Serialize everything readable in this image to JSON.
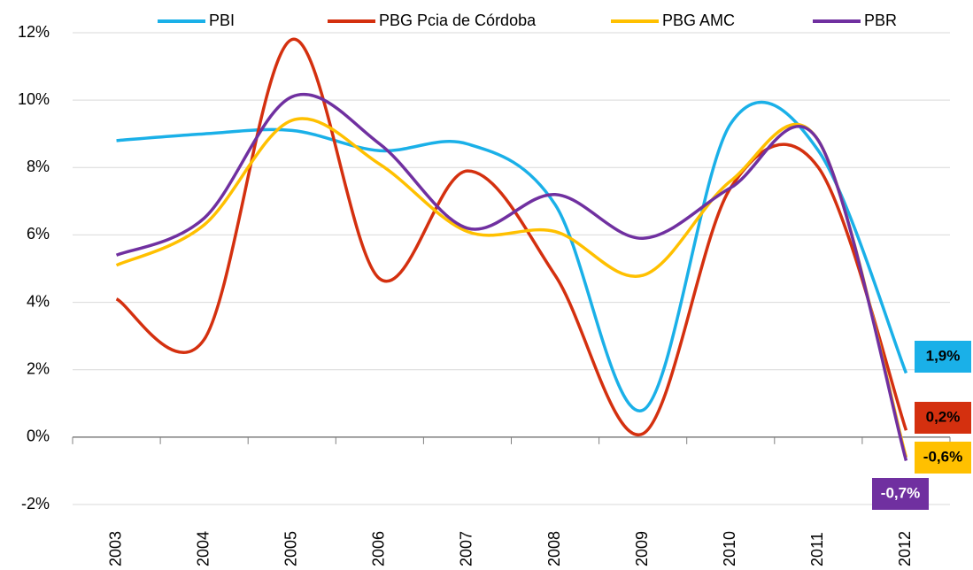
{
  "chart_data": {
    "type": "line",
    "categories": [
      "2003",
      "2004",
      "2005",
      "2006",
      "2007",
      "2008",
      "2009",
      "2010",
      "2011",
      "2012"
    ],
    "series": [
      {
        "name": "PBI",
        "color": "#1ab0e8",
        "values": [
          8.8,
          9.0,
          9.1,
          8.5,
          8.7,
          6.9,
          0.8,
          9.3,
          8.5,
          1.9
        ],
        "value_labels": [
          null,
          null,
          null,
          null,
          null,
          null,
          null,
          null,
          null,
          "1,9%"
        ]
      },
      {
        "name": "PBG Pcia de Córdoba",
        "color": "#d4300f",
        "values": [
          4.1,
          2.9,
          11.8,
          4.7,
          7.9,
          4.8,
          0.1,
          7.4,
          8.0,
          0.2
        ],
        "value_labels": [
          null,
          null,
          null,
          null,
          null,
          null,
          null,
          null,
          null,
          "0,2%"
        ]
      },
      {
        "name": "PBG AMC",
        "color": "#ffc000",
        "values": [
          5.1,
          6.3,
          9.4,
          8.1,
          6.1,
          6.1,
          4.8,
          7.6,
          8.8,
          -0.6
        ],
        "value_labels": [
          null,
          null,
          null,
          null,
          null,
          null,
          null,
          null,
          null,
          "-0,6%"
        ]
      },
      {
        "name": "PBR",
        "color": "#7030a0",
        "values": [
          5.4,
          6.5,
          10.1,
          8.7,
          6.2,
          7.2,
          5.9,
          7.4,
          8.8,
          -0.7
        ],
        "value_labels": [
          null,
          null,
          null,
          null,
          null,
          null,
          null,
          null,
          null,
          "-0,7%"
        ]
      }
    ],
    "ylim": [
      -2,
      12
    ],
    "yticks": [
      {
        "value": -2,
        "label": "-2%"
      },
      {
        "value": 0,
        "label": "0%"
      },
      {
        "value": 2,
        "label": "2%"
      },
      {
        "value": 4,
        "label": "4%"
      },
      {
        "value": 6,
        "label": "6%"
      },
      {
        "value": 8,
        "label": "8%"
      },
      {
        "value": 10,
        "label": "10%"
      },
      {
        "value": 12,
        "label": "12%"
      }
    ],
    "grid": true,
    "legend": "top"
  }
}
